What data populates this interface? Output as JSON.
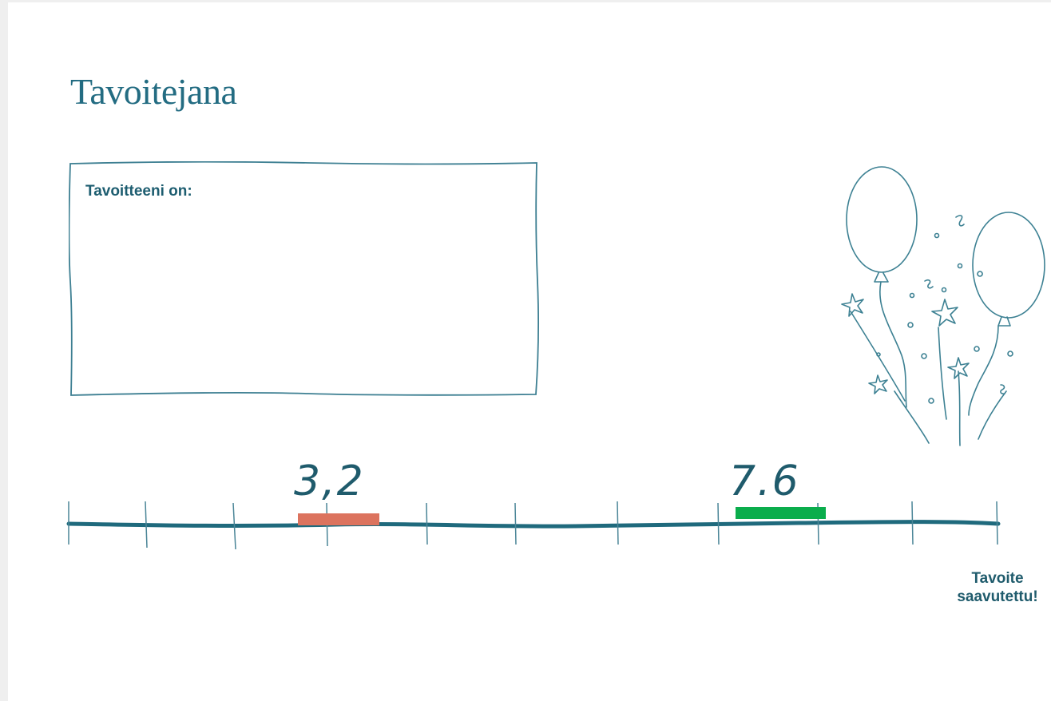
{
  "page": {
    "title": "Tavoitejana"
  },
  "goal_box": {
    "label": "Tavoitteeni on:",
    "value": ""
  },
  "timeline": {
    "marker_start_value": "3,2",
    "marker_end_value": "7.6",
    "end_label_line1": "Tavoite",
    "end_label_line2": "saavutettu!",
    "colors": {
      "line": "#1f6a7d",
      "start_marker": "#dc735e",
      "end_marker": "#0aad4c"
    }
  },
  "decoration": {
    "icon": "balloons-celebration-icon"
  }
}
